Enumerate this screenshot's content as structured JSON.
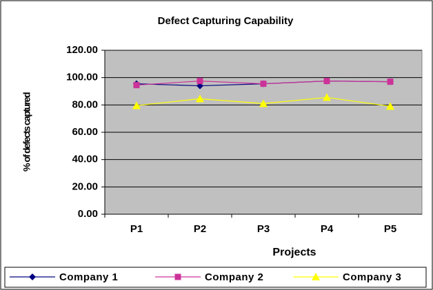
{
  "chart_data": {
    "type": "line",
    "title": "Defect Capturing Capability",
    "x_label": "Projects",
    "y_label": "% of defects captured",
    "categories": [
      "P1",
      "P2",
      "P3",
      "P4",
      "P5"
    ],
    "series": [
      {
        "name": "Company 1",
        "color": "#000080",
        "marker": "diamond",
        "values": [
          95.5,
          94,
          95.5,
          97.5,
          97
        ]
      },
      {
        "name": "Company 2",
        "color": "#cc3399",
        "marker": "square",
        "values": [
          94.5,
          97.5,
          95.5,
          97.5,
          97
        ]
      },
      {
        "name": "Company 3",
        "color": "#ffff00",
        "marker": "triangle",
        "values": [
          79.5,
          84.5,
          81,
          85.5,
          79
        ]
      }
    ],
    "ylim": [
      0,
      120
    ],
    "yticks": [
      {
        "value": 0,
        "label": "0.00"
      },
      {
        "value": 20,
        "label": "20.00"
      },
      {
        "value": 40,
        "label": "40.00"
      },
      {
        "value": 60,
        "label": "60.00"
      },
      {
        "value": 80,
        "label": "80.00"
      },
      {
        "value": 100,
        "label": "100.00"
      },
      {
        "value": 120,
        "label": "120.00"
      }
    ],
    "grid": true,
    "legend": "bottom"
  }
}
